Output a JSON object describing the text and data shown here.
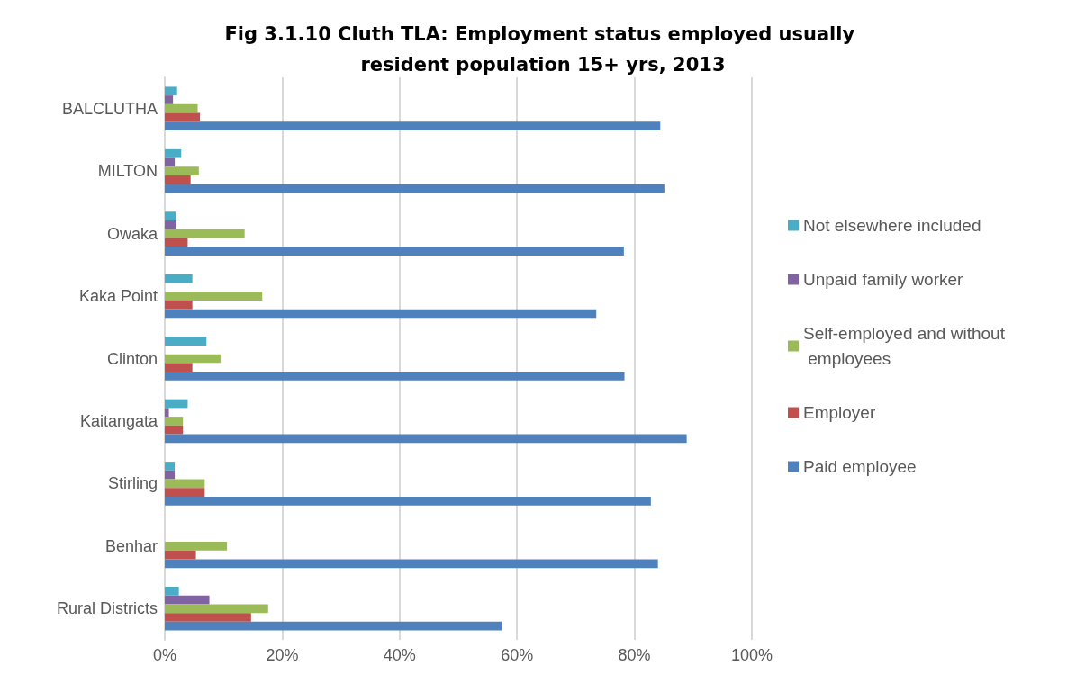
{
  "chart_data": {
    "type": "bar",
    "orientation": "horizontal",
    "title": "Fig 3.1.10 Cluth TLA: Employment status employed usually resident population 15+ yrs, 2013",
    "categories": [
      "BALCLUTHA",
      "MILTON",
      "Owaka",
      "Kaka Point",
      "Clinton",
      "Kaitangata",
      "Stirling",
      "Benhar",
      "Rural Districts"
    ],
    "series": [
      {
        "name": "Not elsewhere included",
        "color": "#4bacc6",
        "values": [
          2.1,
          2.8,
          1.9,
          4.7,
          7.1,
          3.9,
          1.7,
          null,
          2.4
        ]
      },
      {
        "name": "Unpaid family worker",
        "color": "#8064a2",
        "values": [
          1.4,
          1.7,
          2.0,
          null,
          null,
          0.7,
          1.7,
          null,
          7.6
        ]
      },
      {
        "name": "Self-employed and without employees",
        "color": "#9bbb59",
        "values": [
          5.6,
          5.8,
          13.6,
          16.6,
          9.5,
          3.1,
          6.8,
          10.6,
          17.6
        ]
      },
      {
        "name": "Employer",
        "color": "#c0504d",
        "values": [
          6.0,
          4.4,
          3.9,
          4.7,
          4.7,
          3.1,
          6.8,
          5.3,
          14.7
        ]
      },
      {
        "name": "Paid employee",
        "color": "#4f81bd",
        "values": [
          84.4,
          85.1,
          78.2,
          73.5,
          78.3,
          88.9,
          82.8,
          84.0,
          57.4
        ]
      }
    ],
    "xlim": [
      0,
      100
    ],
    "xticks": [
      {
        "value": 0,
        "label": "0%"
      },
      {
        "value": 20,
        "label": "20%"
      },
      {
        "value": 40,
        "label": "40%"
      },
      {
        "value": 60,
        "label": "60%"
      },
      {
        "value": 80,
        "label": "80%"
      },
      {
        "value": 100,
        "label": "100%"
      }
    ],
    "grid": "x",
    "legend": "right"
  }
}
